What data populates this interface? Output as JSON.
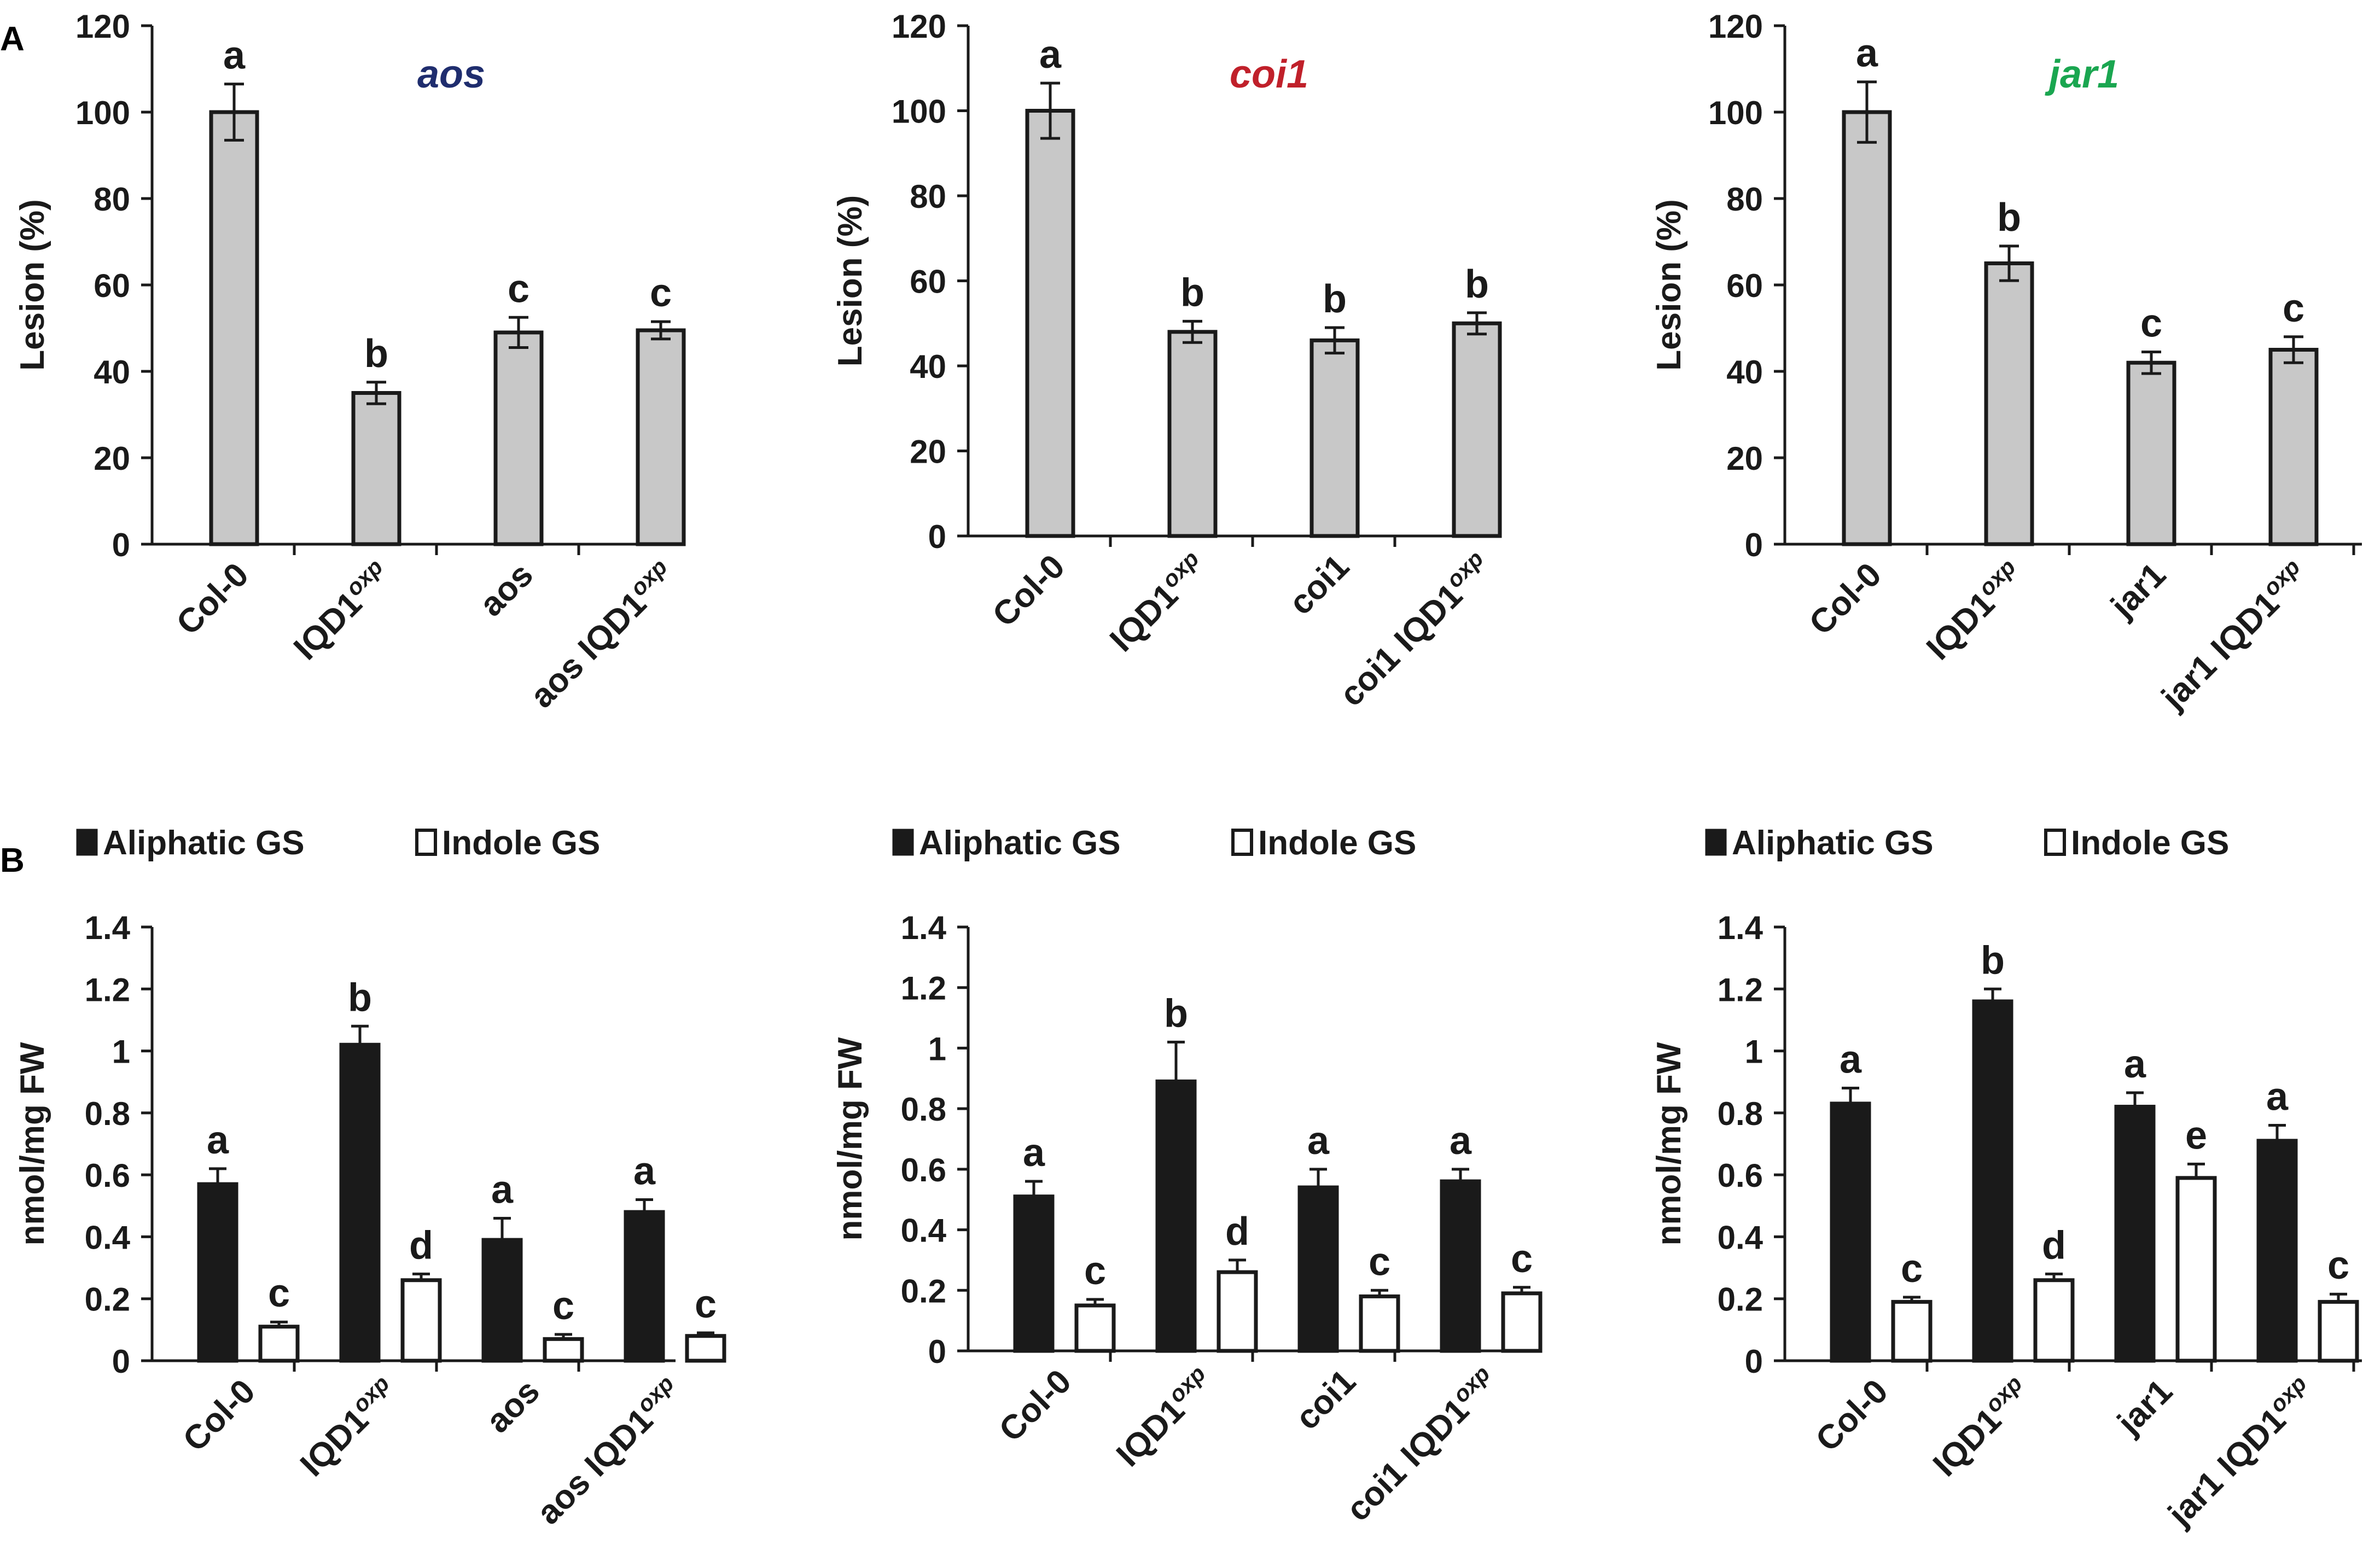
{
  "panel_labels": {
    "a": "A",
    "b": "B"
  },
  "colors": {
    "lesion_bar": "#c8c8c8",
    "aliphatic_bar": "#1a1a1a",
    "indole_bar": "#ffffff",
    "aos_title": "#1f2d6e",
    "coi1_title": "#c0202a",
    "jar1_title": "#1aa650",
    "axis": "#1a1a1a"
  },
  "chart_data": [
    {
      "type": "bar",
      "panel": "A",
      "title": "aos",
      "title_color": "#1f2d6e",
      "ylabel": "Lesion (%)",
      "ylim": [
        0,
        120
      ],
      "yticks": [
        "0",
        "20",
        "40",
        "60",
        "80",
        "100",
        "120"
      ],
      "categories": [
        {
          "main": "Col-0",
          "sup": ""
        },
        {
          "main": "IQD1",
          "sup": "oxp"
        },
        {
          "main": "aos",
          "sup": ""
        },
        {
          "main": "aos IQD1",
          "sup": "oxp"
        }
      ],
      "values": [
        100,
        35,
        49,
        49.5
      ],
      "errors": [
        6.5,
        2.5,
        3.5,
        2
      ],
      "letters": [
        "a",
        "b",
        "c",
        "c"
      ]
    },
    {
      "type": "bar",
      "panel": "A",
      "title": "coi1",
      "title_color": "#c0202a",
      "ylabel": "Lesion (%)",
      "ylim": [
        0,
        120
      ],
      "yticks": [
        "0",
        "20",
        "40",
        "60",
        "80",
        "100",
        "120"
      ],
      "categories": [
        {
          "main": "Col-0",
          "sup": ""
        },
        {
          "main": "IQD1",
          "sup": "oxp"
        },
        {
          "main": "coi1",
          "sup": ""
        },
        {
          "main": "coi1 IQD1",
          "sup": "oxp"
        }
      ],
      "values": [
        100,
        48,
        46,
        50
      ],
      "errors": [
        6.5,
        2.5,
        3,
        2.5
      ],
      "letters": [
        "a",
        "b",
        "b",
        "b"
      ]
    },
    {
      "type": "bar",
      "panel": "A",
      "title": "jar1",
      "title_color": "#1aa650",
      "ylabel": "Lesion (%)",
      "ylim": [
        0,
        120
      ],
      "yticks": [
        "0",
        "20",
        "40",
        "60",
        "80",
        "100",
        "120"
      ],
      "categories": [
        {
          "main": "Col-0",
          "sup": ""
        },
        {
          "main": "IQD1",
          "sup": "oxp"
        },
        {
          "main": "jar1",
          "sup": ""
        },
        {
          "main": "jar1 IQD1",
          "sup": "oxp"
        }
      ],
      "values": [
        100,
        65,
        42,
        45
      ],
      "errors": [
        7,
        4,
        2.5,
        3
      ],
      "letters": [
        "a",
        "b",
        "c",
        "c"
      ]
    },
    {
      "type": "bar",
      "panel": "B",
      "title": "",
      "ylabel": "nmol/mg FW",
      "ylim": [
        0,
        1.4
      ],
      "yticks": [
        "0",
        "0.2",
        "0.4",
        "0.6",
        "0.8",
        "1",
        "1.2",
        "1.4"
      ],
      "legend": [
        "Aliphatic GS",
        "Indole GS"
      ],
      "categories": [
        {
          "main": "Col-0",
          "sup": ""
        },
        {
          "main": "IQD1",
          "sup": "oxp"
        },
        {
          "main": "aos",
          "sup": ""
        },
        {
          "main": "aos IQD1",
          "sup": "oxp"
        }
      ],
      "series": [
        {
          "name": "Aliphatic GS",
          "values": [
            0.57,
            1.02,
            0.39,
            0.48
          ],
          "errors": [
            0.05,
            0.06,
            0.07,
            0.04
          ],
          "letters": [
            "a",
            "b",
            "a",
            "a"
          ]
        },
        {
          "name": "Indole GS",
          "values": [
            0.11,
            0.26,
            0.07,
            0.08
          ],
          "errors": [
            0.015,
            0.02,
            0.015,
            0.01
          ],
          "letters": [
            "c",
            "d",
            "c",
            "c"
          ]
        }
      ]
    },
    {
      "type": "bar",
      "panel": "B",
      "title": "",
      "ylabel": "nmol/mg FW",
      "ylim": [
        0,
        1.4
      ],
      "yticks": [
        "0",
        "0.2",
        "0.4",
        "0.6",
        "0.8",
        "1",
        "1.2",
        "1.4"
      ],
      "legend": [
        "Aliphatic GS",
        "Indole GS"
      ],
      "categories": [
        {
          "main": "Col-0",
          "sup": ""
        },
        {
          "main": "IQD1",
          "sup": "oxp"
        },
        {
          "main": "coi1",
          "sup": ""
        },
        {
          "main": "coi1 IQD1",
          "sup": "oxp"
        }
      ],
      "series": [
        {
          "name": "Aliphatic GS",
          "values": [
            0.51,
            0.89,
            0.54,
            0.56
          ],
          "errors": [
            0.05,
            0.13,
            0.06,
            0.04
          ],
          "letters": [
            "a",
            "b",
            "a",
            "a"
          ]
        },
        {
          "name": "Indole GS",
          "values": [
            0.15,
            0.26,
            0.18,
            0.19
          ],
          "errors": [
            0.02,
            0.04,
            0.02,
            0.02
          ],
          "letters": [
            "c",
            "d",
            "c",
            "c"
          ]
        }
      ]
    },
    {
      "type": "bar",
      "panel": "B",
      "title": "",
      "ylabel": "nmol/mg FW",
      "ylim": [
        0,
        1.4
      ],
      "yticks": [
        "0",
        "0.2",
        "0.4",
        "0.6",
        "0.8",
        "1",
        "1.2",
        "1.4"
      ],
      "legend": [
        "Aliphatic GS",
        "Indole GS"
      ],
      "categories": [
        {
          "main": "Col-0",
          "sup": ""
        },
        {
          "main": "IQD1",
          "sup": "oxp"
        },
        {
          "main": "jar1",
          "sup": ""
        },
        {
          "main": "jar1 IQD1",
          "sup": "oxp"
        }
      ],
      "series": [
        {
          "name": "Aliphatic GS",
          "values": [
            0.83,
            1.16,
            0.82,
            0.71
          ],
          "errors": [
            0.05,
            0.04,
            0.045,
            0.05
          ],
          "letters": [
            "a",
            "b",
            "a",
            "a"
          ]
        },
        {
          "name": "Indole GS",
          "values": [
            0.19,
            0.26,
            0.59,
            0.19
          ],
          "errors": [
            0.015,
            0.02,
            0.045,
            0.025
          ],
          "letters": [
            "c",
            "d",
            "e",
            "c"
          ]
        }
      ]
    }
  ]
}
